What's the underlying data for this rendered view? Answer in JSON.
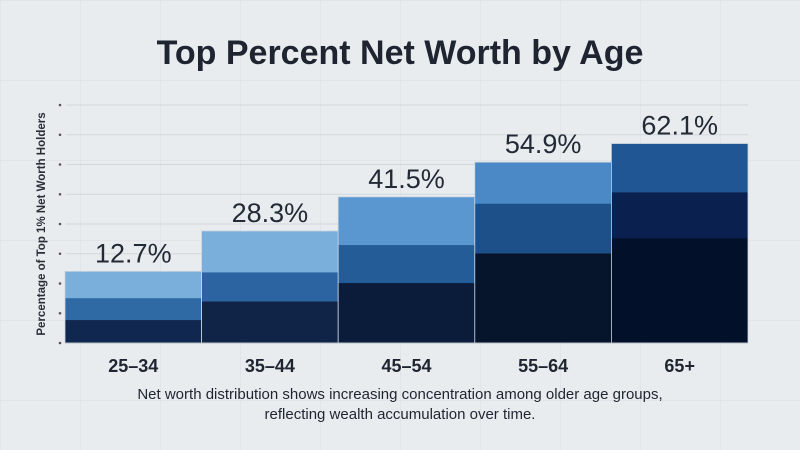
{
  "chart_data": {
    "type": "bar",
    "title": "Top Percent Net Worth by Age",
    "ylabel": "Percentage of Top 1% Net Worth Holders",
    "xlabel": "",
    "categories": [
      "25–34",
      "35–44",
      "45–54",
      "55–64",
      "65+"
    ],
    "values": [
      12.7,
      28.3,
      41.5,
      54.9,
      62.1
    ],
    "data_labels": [
      "12.7%",
      "28.3%",
      "41.5%",
      "54.9%",
      "62.1%"
    ],
    "ylim": [
      -15,
      77
    ],
    "stacked_segment_shares_top_to_bottom": [
      [
        0.375,
        0.305,
        0.32
      ],
      [
        0.37,
        0.26,
        0.37
      ],
      [
        0.33,
        0.26,
        0.41
      ],
      [
        0.23,
        0.275,
        0.495
      ],
      [
        0.245,
        0.23,
        0.525
      ]
    ],
    "segment_colors": [
      [
        "#7aaedb",
        "#2f6aa5",
        "#10284f"
      ],
      [
        "#7aaedb",
        "#2b64a0",
        "#0f2447"
      ],
      [
        "#5a97d0",
        "#245c98",
        "#0a1c3a"
      ],
      [
        "#4a88c6",
        "#1d4f88",
        "#06142c"
      ],
      [
        "#1f5693",
        "#0a2150",
        "#03102a"
      ]
    ],
    "grid": true,
    "caption": [
      "Net worth distribution shows increasing concentration among older age groups,",
      "reflecting wealth accumulation over time."
    ]
  }
}
